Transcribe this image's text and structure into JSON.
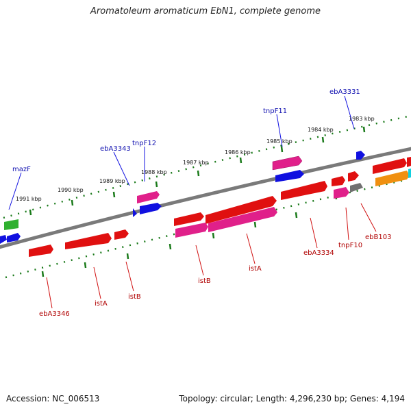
{
  "title": "Aromatoleum aromaticum EbN1, complete genome",
  "accession": "Accession: NC_006513",
  "topology": "Topology: circular; Length: 4,296,230 bp; Genes: 4,194",
  "ticks": [
    "1983 kbp",
    "1984 kbp",
    "1985 kbp",
    "1986 kbp",
    "1987 kbp",
    "1988 kbp",
    "1989 kbp",
    "1990 kbp",
    "1991 kbp"
  ],
  "genes_top": [
    "ebA3331",
    "tnpF11",
    "tnpF12",
    "ebA3343",
    "mazF"
  ],
  "genes_bottom": [
    "ebA3346",
    "istA",
    "istB",
    "istB",
    "istA",
    "ebA3334",
    "tnpF10",
    "ebB103"
  ],
  "colors": {
    "backbone": "#7a7a7a",
    "tick": "#1a7a1a",
    "cds": "#e01010",
    "mobile": "#e0208a",
    "blue": "#1010e0",
    "green": "#30b030",
    "orange": "#f09010",
    "gray": "#707070",
    "cyan": "#10d0e0"
  }
}
